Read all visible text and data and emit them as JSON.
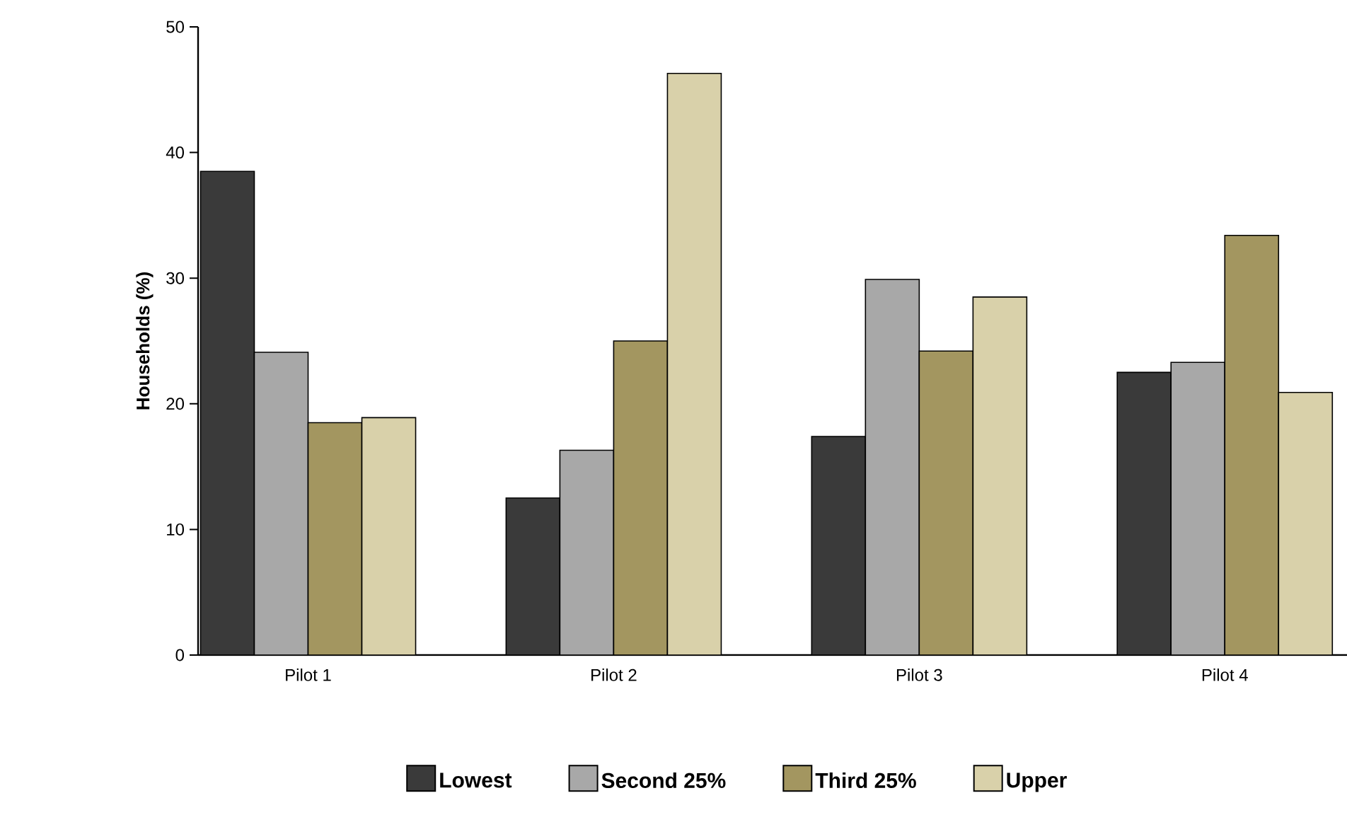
{
  "chart_data": {
    "type": "bar",
    "ylabel": "Households  (%)",
    "categories": [
      "Pilot 1",
      "Pilot 2",
      "Pilot 3",
      "Pilot 4"
    ],
    "series": [
      {
        "name": "Lowest",
        "color": "#3a3a3a",
        "values": [
          38.5,
          12.5,
          17.4,
          22.5
        ]
      },
      {
        "name": "Second 25%",
        "color": "#a8a8a8",
        "values": [
          24.1,
          16.3,
          29.9,
          23.3
        ]
      },
      {
        "name": "Third 25%",
        "color": "#a39660",
        "values": [
          18.5,
          25.0,
          24.2,
          33.4
        ]
      },
      {
        "name": "Upper",
        "color": "#d9d1aa",
        "values": [
          18.9,
          46.3,
          28.5,
          20.9
        ]
      }
    ],
    "ylim": [
      0,
      50
    ],
    "yticks": [
      0,
      10,
      20,
      30,
      40,
      50
    ],
    "legend": "bottom"
  }
}
